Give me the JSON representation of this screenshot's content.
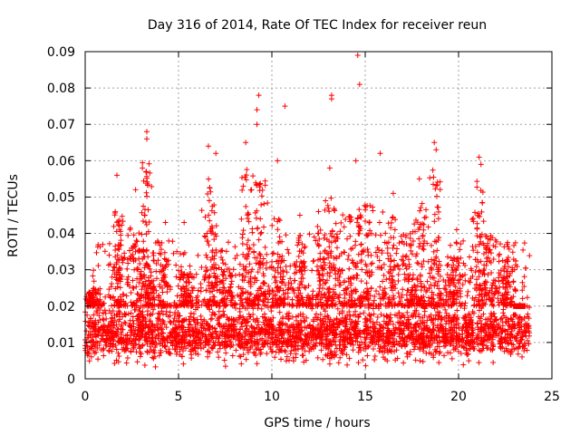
{
  "chart_data": {
    "type": "scatter",
    "title": "Day 316 of 2014, Rate Of TEC Index for receiver reun",
    "xlabel": "GPS time / hours",
    "ylabel": "ROTI / TECUs",
    "xlim": [
      0,
      25
    ],
    "ylim": [
      0,
      0.09
    ],
    "x_ticks": [
      0,
      5,
      10,
      15,
      20,
      25
    ],
    "x_tick_labels": [
      "0",
      "5",
      "10",
      "15",
      "20",
      "25"
    ],
    "y_ticks": [
      0,
      0.01,
      0.02,
      0.03,
      0.04,
      0.05,
      0.06,
      0.07,
      0.08,
      0.09
    ],
    "y_tick_labels": [
      "0",
      "0.01",
      "0.02",
      "0.03",
      "0.04",
      "0.05",
      "0.06",
      "0.07",
      "0.08",
      "0.09"
    ],
    "grid": true,
    "marker": "+",
    "color": "#ff0000",
    "x_range_of_data": [
      0,
      23.8
    ],
    "typical_band": [
      0.005,
      0.02
    ],
    "notable_points": [
      {
        "x": 3.3,
        "y": 0.068
      },
      {
        "x": 3.3,
        "y": 0.066
      },
      {
        "x": 1.7,
        "y": 0.056
      },
      {
        "x": 6.6,
        "y": 0.064
      },
      {
        "x": 7.0,
        "y": 0.062
      },
      {
        "x": 8.6,
        "y": 0.065
      },
      {
        "x": 9.3,
        "y": 0.078
      },
      {
        "x": 9.2,
        "y": 0.074
      },
      {
        "x": 9.2,
        "y": 0.07
      },
      {
        "x": 10.7,
        "y": 0.075
      },
      {
        "x": 10.3,
        "y": 0.06
      },
      {
        "x": 13.2,
        "y": 0.078
      },
      {
        "x": 13.2,
        "y": 0.077
      },
      {
        "x": 14.6,
        "y": 0.089
      },
      {
        "x": 14.7,
        "y": 0.081
      },
      {
        "x": 14.5,
        "y": 0.06
      },
      {
        "x": 13.1,
        "y": 0.058
      },
      {
        "x": 15.8,
        "y": 0.062
      },
      {
        "x": 18.7,
        "y": 0.065
      },
      {
        "x": 18.8,
        "y": 0.063
      },
      {
        "x": 21.1,
        "y": 0.061
      },
      {
        "x": 21.2,
        "y": 0.059
      },
      {
        "x": 17.9,
        "y": 0.055
      },
      {
        "x": 4.3,
        "y": 0.043
      },
      {
        "x": 5.3,
        "y": 0.043
      },
      {
        "x": 2.7,
        "y": 0.052
      },
      {
        "x": 11.5,
        "y": 0.045
      },
      {
        "x": 12.5,
        "y": 0.046
      },
      {
        "x": 16.5,
        "y": 0.051
      },
      {
        "x": 19.9,
        "y": 0.041
      },
      {
        "x": 22.6,
        "y": 0.037
      },
      {
        "x": 23.0,
        "y": 0.03
      }
    ],
    "clusters": [
      {
        "center": 0.4,
        "width": 0.4,
        "peak": 0.025
      },
      {
        "center": 1.8,
        "width": 0.3,
        "peak": 0.046
      },
      {
        "center": 2.8,
        "width": 0.5,
        "peak": 0.042
      },
      {
        "center": 3.3,
        "width": 0.3,
        "peak": 0.06
      },
      {
        "center": 4.1,
        "width": 0.5,
        "peak": 0.038
      },
      {
        "center": 5.4,
        "width": 0.4,
        "peak": 0.03
      },
      {
        "center": 6.7,
        "width": 0.4,
        "peak": 0.055
      },
      {
        "center": 7.5,
        "width": 0.6,
        "peak": 0.036
      },
      {
        "center": 8.7,
        "width": 0.4,
        "peak": 0.058
      },
      {
        "center": 9.4,
        "width": 0.4,
        "peak": 0.055
      },
      {
        "center": 10.4,
        "width": 0.5,
        "peak": 0.046
      },
      {
        "center": 11.6,
        "width": 0.5,
        "peak": 0.04
      },
      {
        "center": 12.6,
        "width": 0.5,
        "peak": 0.042
      },
      {
        "center": 13.3,
        "width": 0.4,
        "peak": 0.05
      },
      {
        "center": 14.2,
        "width": 0.5,
        "peak": 0.048
      },
      {
        "center": 15.0,
        "width": 0.5,
        "peak": 0.048
      },
      {
        "center": 16.3,
        "width": 0.5,
        "peak": 0.046
      },
      {
        "center": 17.3,
        "width": 0.5,
        "peak": 0.04
      },
      {
        "center": 18.0,
        "width": 0.4,
        "peak": 0.05
      },
      {
        "center": 18.8,
        "width": 0.4,
        "peak": 0.058
      },
      {
        "center": 19.8,
        "width": 0.5,
        "peak": 0.034
      },
      {
        "center": 21.1,
        "width": 0.4,
        "peak": 0.055
      },
      {
        "center": 21.7,
        "width": 0.5,
        "peak": 0.04
      },
      {
        "center": 22.6,
        "width": 0.4,
        "peak": 0.033
      },
      {
        "center": 23.3,
        "width": 0.4,
        "peak": 0.02
      }
    ]
  }
}
